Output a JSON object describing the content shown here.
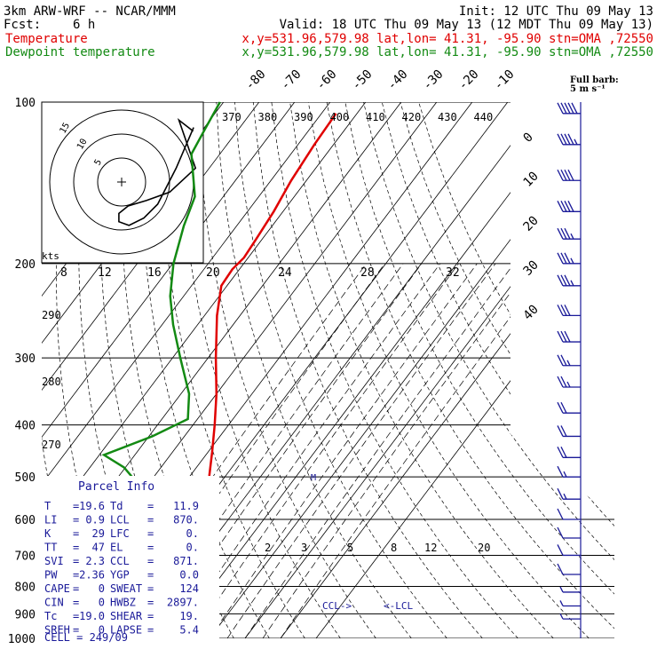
{
  "header": {
    "model": "3km ARW-WRF -- NCAR/MMM",
    "init": "Init: 12 UTC Thu 09 May 13",
    "fcst_label": "Fcst:",
    "fcst_value": "6 h",
    "valid": "Valid: 18 UTC Thu 09 May 13 (12 MDT Thu 09 May 13)",
    "temp_label": "Temperature",
    "dew_label": "Dewpoint temperature",
    "loc_line": "x,y=531.96,579.98   lat,lon= 41.31, -95.90   stn=OMA ,72550"
  },
  "colors": {
    "temperature": "#e00000",
    "dewpoint": "#138a13",
    "text": "#000000",
    "barbs": "#1a1a99",
    "parcel": "#1a1a99"
  },
  "barb_legend": {
    "title": "Full barb:",
    "unit": "5 m s⁻¹"
  },
  "hodograph": {
    "speed_unit": "kts",
    "ring_labels": [
      "5",
      "10",
      "15"
    ],
    "points": [
      {
        "u": 15.5,
        "v": 11.0
      },
      {
        "u": 12.4,
        "v": 13.4
      },
      {
        "u": 16.0,
        "v": 3.0
      },
      {
        "u": 10.4,
        "v": -2.2
      },
      {
        "u": 5.4,
        "v": -4.0
      },
      {
        "u": 1.4,
        "v": -5.2
      },
      {
        "u": -0.6,
        "v": -6.8
      },
      {
        "u": -0.6,
        "v": -8.6
      },
      {
        "u": 1.6,
        "v": -9.4
      },
      {
        "u": 4.8,
        "v": -7.8
      },
      {
        "u": 7.8,
        "v": -4.8
      },
      {
        "u": 11.8,
        "v": 3.0
      },
      {
        "u": 15.6,
        "v": 11.8
      }
    ]
  },
  "parcel_info": {
    "title": "Parcel Info",
    "rows": [
      [
        "T",
        "19.6",
        "Td",
        "11.9"
      ],
      [
        "LI",
        "0.9",
        "LCL",
        "870."
      ],
      [
        "K",
        "29",
        "LFC",
        "0."
      ],
      [
        "TT",
        "47",
        "EL",
        "0."
      ],
      [
        "SVI",
        "2.3",
        "CCL",
        "871."
      ],
      [
        "PW",
        "2.36",
        "YGP",
        "0.0"
      ],
      [
        "CAPE",
        "0",
        "SWEAT",
        "124"
      ],
      [
        "CIN",
        "0",
        "HWBZ",
        "2897."
      ],
      [
        "Tc",
        "19.0",
        "SHEAR",
        "19."
      ],
      [
        "SREH",
        "0",
        "LAPSE",
        "5.4"
      ]
    ],
    "cell": "CELL = 249/09"
  },
  "annotations": {
    "ccl": "CCL->",
    "lcl": "<-LCL",
    "m_marker": "M"
  },
  "chart_data": {
    "type": "line",
    "diagram": "skew-T log-p",
    "ylabel": "",
    "xlabel": "",
    "y_axis": "pressure (hPa), logarithmic, decreasing upward",
    "ylim": [
      1000,
      100
    ],
    "pressure_ticks": [
      100,
      200,
      300,
      400,
      500,
      600,
      700,
      800,
      900,
      1000
    ],
    "temperature_ticks": [
      -80,
      -70,
      -60,
      -50,
      -40,
      -30,
      -20,
      -10,
      0,
      10,
      20,
      30,
      40
    ],
    "theta_labels_top": [
      370,
      380,
      390,
      400,
      410,
      420,
      430,
      440
    ],
    "theta_labels_left": [
      290,
      280,
      270
    ],
    "mixing_ratio_labels_upper": [
      8,
      12,
      16,
      20,
      24,
      28,
      32
    ],
    "mixing_ratio_labels_lower": [
      2,
      3,
      5,
      8,
      12,
      20
    ],
    "series": [
      {
        "name": "Temperature",
        "points": [
          {
            "p": 985,
            "t": 19.6
          },
          {
            "p": 950,
            "t": 16.3
          },
          {
            "p": 900,
            "t": 12.5
          },
          {
            "p": 870,
            "t": 10.0
          },
          {
            "p": 800,
            "t": 5.2
          },
          {
            "p": 700,
            "t": -0.8
          },
          {
            "p": 600,
            "t": -6.9
          },
          {
            "p": 500,
            "t": -14.4
          },
          {
            "p": 450,
            "t": -18.8
          },
          {
            "p": 400,
            "t": -23.9
          },
          {
            "p": 350,
            "t": -30.0
          },
          {
            "p": 300,
            "t": -37.8
          },
          {
            "p": 250,
            "t": -46.5
          },
          {
            "p": 220,
            "t": -51.6
          },
          {
            "p": 205,
            "t": -52.0
          },
          {
            "p": 195,
            "t": -51.2
          },
          {
            "p": 180,
            "t": -51.7
          },
          {
            "p": 160,
            "t": -52.6
          },
          {
            "p": 140,
            "t": -54.3
          },
          {
            "p": 120,
            "t": -55.4
          },
          {
            "p": 105,
            "t": -55.9
          }
        ]
      },
      {
        "name": "Dewpoint temperature",
        "points": [
          {
            "p": 985,
            "t": 11.9
          },
          {
            "p": 940,
            "t": 11.7
          },
          {
            "p": 910,
            "t": 10.6
          },
          {
            "p": 860,
            "t": 9.1
          },
          {
            "p": 820,
            "t": 3.6
          },
          {
            "p": 770,
            "t": 0.5
          },
          {
            "p": 700,
            "t": -3.8
          },
          {
            "p": 650,
            "t": -10.6
          },
          {
            "p": 600,
            "t": -18.4
          },
          {
            "p": 540,
            "t": -28.0
          },
          {
            "p": 480,
            "t": -40.4
          },
          {
            "p": 455,
            "t": -48.7
          },
          {
            "p": 420,
            "t": -39.0
          },
          {
            "p": 390,
            "t": -32.7
          },
          {
            "p": 350,
            "t": -37.7
          },
          {
            "p": 300,
            "t": -47.8
          },
          {
            "p": 260,
            "t": -56.9
          },
          {
            "p": 230,
            "t": -63.8
          },
          {
            "p": 200,
            "t": -69.8
          },
          {
            "p": 170,
            "t": -74.9
          },
          {
            "p": 150,
            "t": -78.0
          },
          {
            "p": 125,
            "t": -88.0
          },
          {
            "p": 112,
            "t": -89.5
          },
          {
            "p": 100,
            "t": -91.0
          }
        ]
      }
    ],
    "wind_profile": [
      {
        "p": 105,
        "dir": 270,
        "kt": 50
      },
      {
        "p": 120,
        "dir": 268,
        "kt": 45
      },
      {
        "p": 140,
        "dir": 268,
        "kt": 40
      },
      {
        "p": 160,
        "dir": 265,
        "kt": 40
      },
      {
        "p": 180,
        "dir": 262,
        "kt": 35
      },
      {
        "p": 200,
        "dir": 258,
        "kt": 35
      },
      {
        "p": 220,
        "dir": 255,
        "kt": 35
      },
      {
        "p": 250,
        "dir": 250,
        "kt": 30
      },
      {
        "p": 280,
        "dir": 250,
        "kt": 30
      },
      {
        "p": 310,
        "dir": 245,
        "kt": 25
      },
      {
        "p": 340,
        "dir": 240,
        "kt": 25
      },
      {
        "p": 380,
        "dir": 240,
        "kt": 20
      },
      {
        "p": 420,
        "dir": 235,
        "kt": 20
      },
      {
        "p": 460,
        "dir": 230,
        "kt": 20
      },
      {
        "p": 500,
        "dir": 230,
        "kt": 15
      },
      {
        "p": 550,
        "dir": 225,
        "kt": 15
      },
      {
        "p": 600,
        "dir": 220,
        "kt": 10
      },
      {
        "p": 650,
        "dir": 215,
        "kt": 10
      },
      {
        "p": 700,
        "dir": 210,
        "kt": 10
      },
      {
        "p": 760,
        "dir": 200,
        "kt": 10
      },
      {
        "p": 820,
        "dir": 190,
        "kt": 5
      },
      {
        "p": 870,
        "dir": 180,
        "kt": 5
      },
      {
        "p": 920,
        "dir": 180,
        "kt": 5
      }
    ]
  }
}
